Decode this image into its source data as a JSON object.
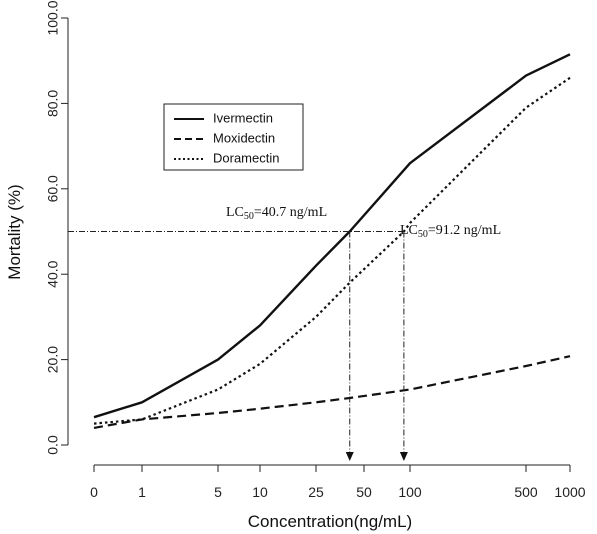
{
  "chart_data": {
    "type": "line",
    "xlabel": "Concentration(ng/mL)",
    "ylabel": "Mortality (%)",
    "x_categories": [
      "0",
      "1",
      "5",
      "10",
      "25",
      "50",
      "100",
      "500",
      "1000"
    ],
    "y_ticks": [
      "0.0",
      "20.0",
      "40.0",
      "60.0",
      "80.0",
      "100.0"
    ],
    "ylim": [
      0,
      100
    ],
    "legend_position": "upper-left",
    "grid": false,
    "series": [
      {
        "name": "Ivermectin",
        "style": "solid",
        "points": [
          [
            0,
            6.5
          ],
          [
            1,
            10
          ],
          [
            5,
            20
          ],
          [
            10,
            28
          ],
          [
            25,
            42
          ],
          [
            40.7,
            50
          ],
          [
            100,
            66
          ],
          [
            500,
            86.5
          ],
          [
            1000,
            91.5
          ]
        ]
      },
      {
        "name": "Moxidectin",
        "style": "dashed",
        "points": [
          [
            0,
            4
          ],
          [
            1,
            6
          ],
          [
            5,
            7.5
          ],
          [
            10,
            8.5
          ],
          [
            25,
            10
          ],
          [
            40.7,
            11
          ],
          [
            100,
            13
          ],
          [
            500,
            18.5
          ],
          [
            1000,
            20.8
          ]
        ]
      },
      {
        "name": "Doramectin",
        "style": "dotted",
        "points": [
          [
            0,
            5
          ],
          [
            1,
            6
          ],
          [
            5,
            13
          ],
          [
            10,
            19
          ],
          [
            25,
            30
          ],
          [
            40.7,
            38
          ],
          [
            91.2,
            50
          ],
          [
            100,
            52
          ],
          [
            500,
            79
          ],
          [
            1000,
            86
          ]
        ]
      }
    ],
    "annotations": [
      {
        "prefix": "LC",
        "sub": "50",
        "suffix": "=40.7 ng/mL",
        "x": 40.7,
        "y": 50
      },
      {
        "prefix": "LC",
        "sub": "50",
        "suffix": "=91.2 ng/mL",
        "x": 91.2,
        "y": 50
      }
    ]
  }
}
